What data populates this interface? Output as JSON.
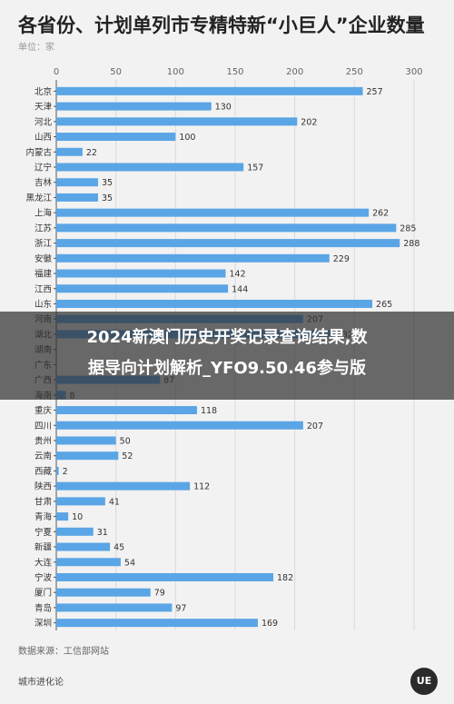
{
  "title": "各省份、计划单列市专精特新“小巨人”企业数量",
  "unit_label": "单位：家",
  "source": "数据来源：工信部网站",
  "brand": "城市进化论",
  "logo_text": "UE",
  "banner": {
    "line1": "2024新澳门历史开奖记录查询结果,数",
    "line2": "据导向计划解析_YFO9.50.46参与版"
  },
  "colors": {
    "bar": "#5aa5e6",
    "grid": "#d9d9d9",
    "background": "#f2f2f2"
  },
  "chart_data": {
    "type": "bar",
    "orientation": "horizontal",
    "xlim": [
      0,
      300
    ],
    "xticks": [
      0,
      50,
      100,
      150,
      200,
      250,
      300
    ],
    "grid": true,
    "data_labels": true,
    "categories": [
      "北京",
      "天津",
      "河北",
      "山西",
      "内蒙古",
      "辽宁",
      "吉林",
      "黑龙江",
      "上海",
      "江苏",
      "浙江",
      "安徽",
      "福建",
      "江西",
      "山东",
      "河南",
      "湖北",
      "湖南",
      "广东",
      "广西",
      "海南",
      "重庆",
      "四川",
      "贵州",
      "云南",
      "西藏",
      "陕西",
      "甘肃",
      "青海",
      "宁夏",
      "新疆",
      "大连",
      "宁波",
      "厦门",
      "青岛",
      "深圳"
    ],
    "values": [
      257,
      130,
      202,
      100,
      22,
      157,
      35,
      35,
      262,
      285,
      288,
      229,
      142,
      144,
      265,
      207,
      232,
      null,
      null,
      87,
      8,
      118,
      207,
      50,
      52,
      2,
      112,
      41,
      10,
      31,
      45,
      54,
      182,
      79,
      97,
      169
    ]
  }
}
